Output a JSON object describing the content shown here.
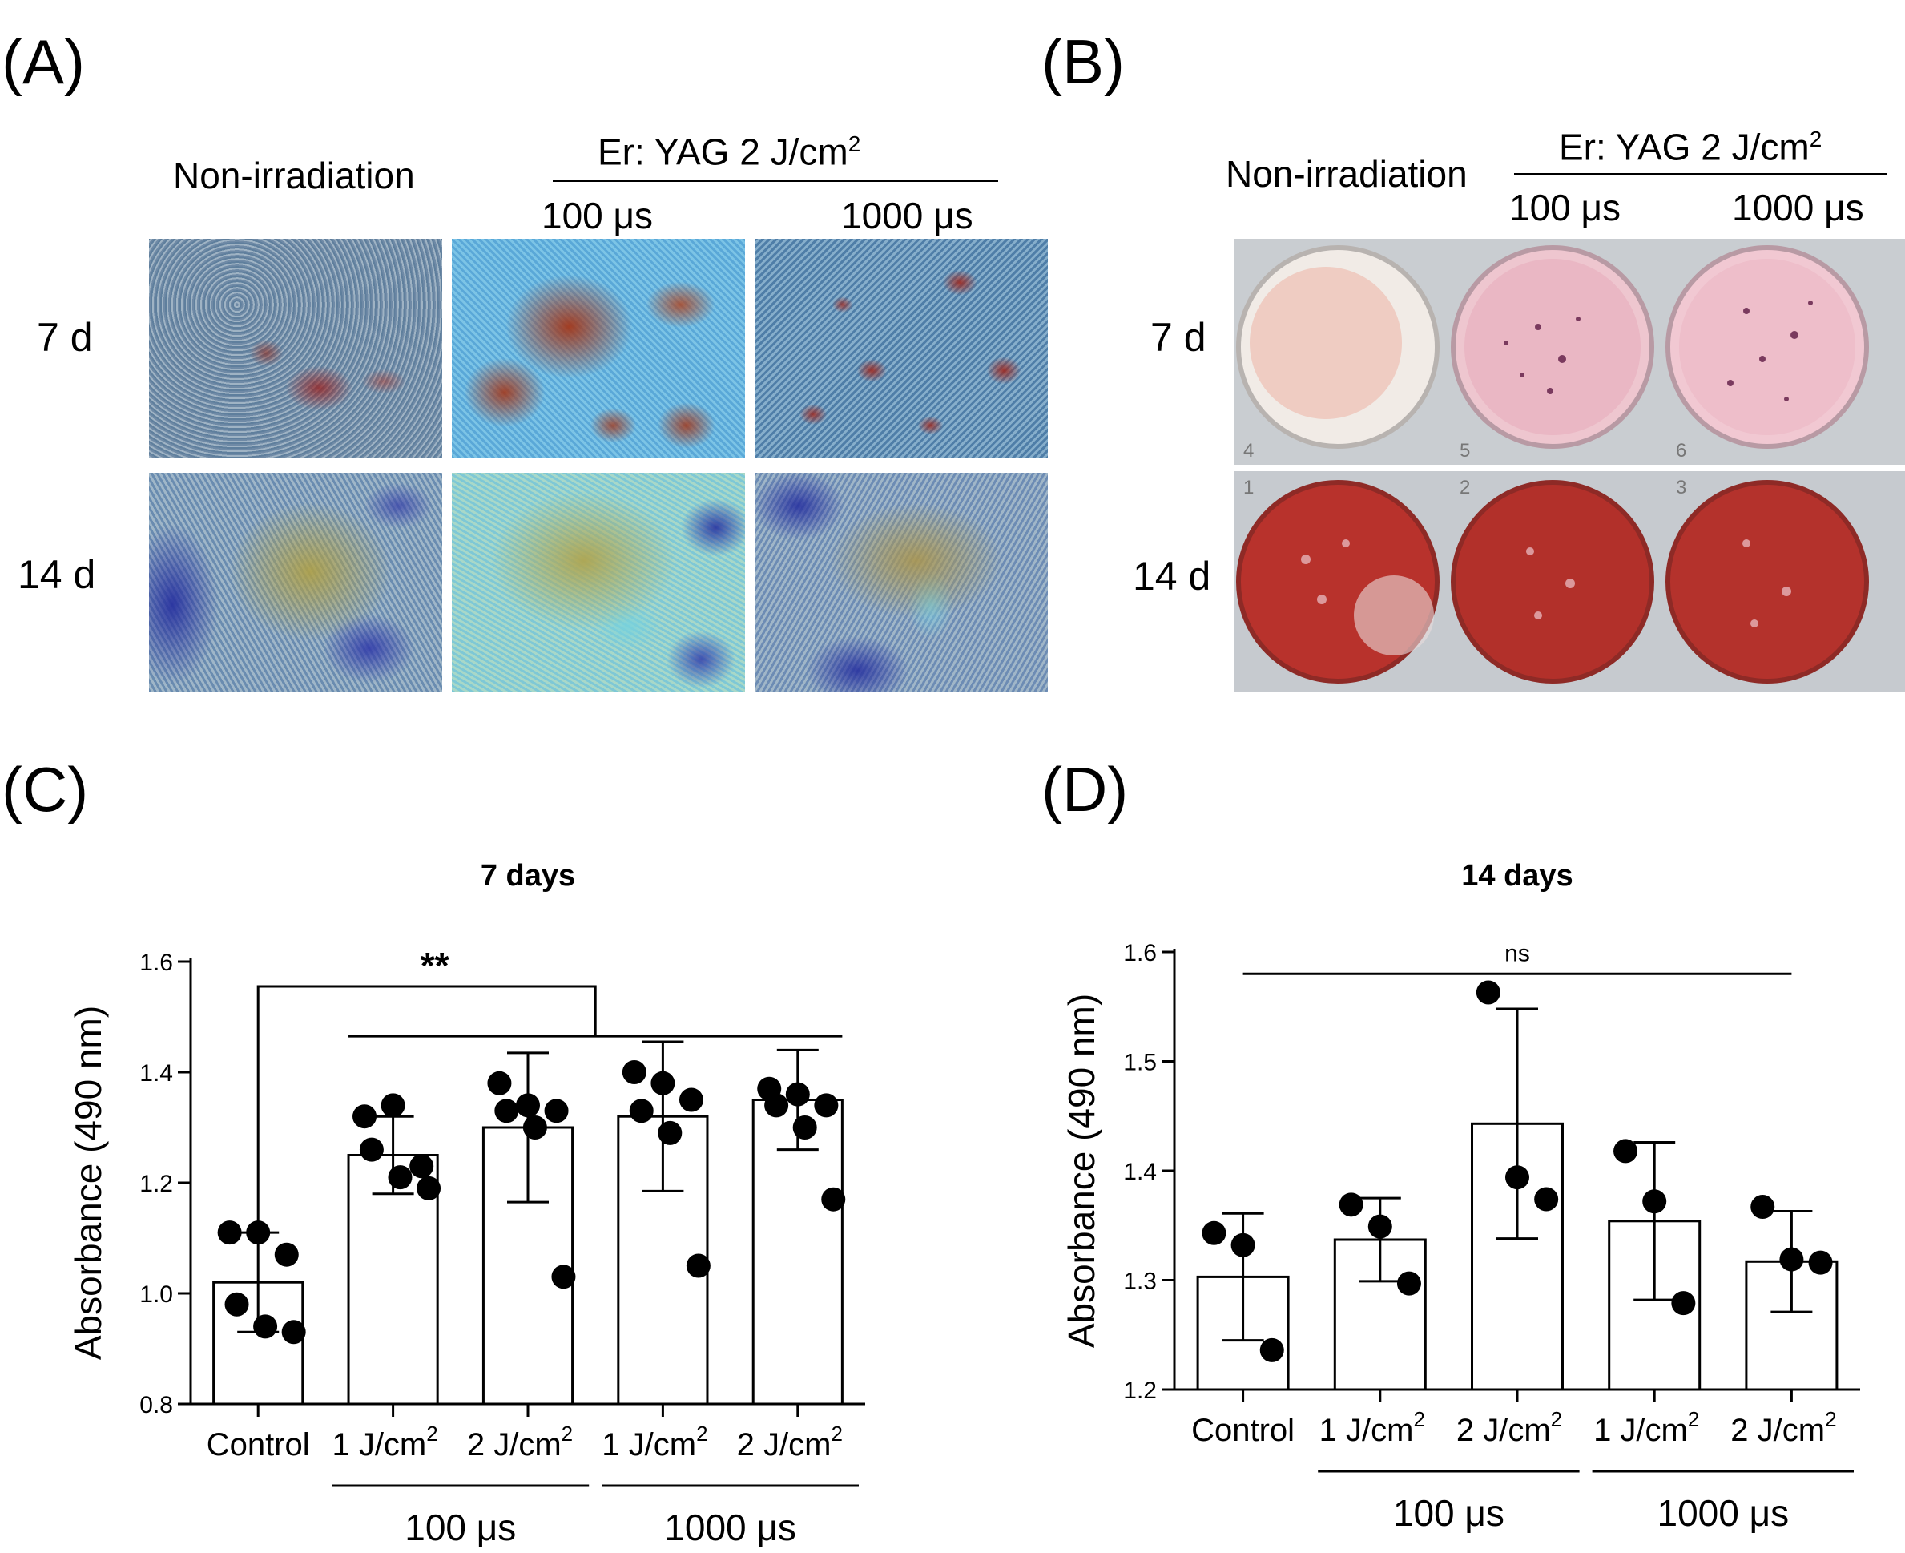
{
  "panels": {
    "A": {
      "label": "(A)",
      "col_header": "Non-irradiation",
      "group_header_prefix": "Er: YAG 2 J/cm",
      "group_header_sup": "2",
      "sub_cols": [
        "100 μs",
        "1000 μs"
      ],
      "rows": [
        "7 d",
        "14 d"
      ]
    },
    "B": {
      "label": "(B)",
      "col_header": "Non-irradiation",
      "group_header_prefix": "Er: YAG 2 J/cm",
      "group_header_sup": "2",
      "sub_cols": [
        "100 μs",
        "1000 μs"
      ],
      "rows": [
        "7 d",
        "14 d"
      ],
      "well_numbers": [
        "4",
        "5",
        "6",
        "1",
        "2",
        "3"
      ]
    },
    "C": {
      "label": "(C)"
    },
    "D": {
      "label": "(D)"
    }
  },
  "chart_data": [
    {
      "type": "bar",
      "title": "7 days",
      "ylabel": "Absorbance (490 nm)",
      "ylim": [
        0.8,
        1.6
      ],
      "yticks": [
        "0.8",
        "1.0",
        "1.2",
        "1.4",
        "1.6"
      ],
      "categories": [
        "Control",
        "1 J/cm2",
        "2 J/cm2",
        "1 J/cm2",
        "2 J/cm2"
      ],
      "tick_labels": [
        {
          "text": "Control",
          "sup": ""
        },
        {
          "text": "1 J/cm",
          "sup": "2"
        },
        {
          "text": "2 J/cm",
          "sup": "2"
        },
        {
          "text": "1 J/cm",
          "sup": "2"
        },
        {
          "text": "2 J/cm",
          "sup": "2"
        }
      ],
      "groups": [
        {
          "label": "100 μs",
          "from": 1,
          "to": 2
        },
        {
          "label": "1000 μs",
          "from": 3,
          "to": 4
        }
      ],
      "values": [
        1.02,
        1.25,
        1.3,
        1.32,
        1.35
      ],
      "errors": [
        0.09,
        0.07,
        0.135,
        0.135,
        0.09
      ],
      "points": [
        [
          1.11,
          1.11,
          1.07,
          0.98,
          0.94,
          0.93
        ],
        [
          1.32,
          1.34,
          1.23,
          1.26,
          1.21,
          1.19
        ],
        [
          1.38,
          1.34,
          1.33,
          1.33,
          1.3,
          1.03
        ],
        [
          1.4,
          1.38,
          1.35,
          1.33,
          1.29,
          1.05
        ],
        [
          1.37,
          1.36,
          1.34,
          1.34,
          1.3,
          1.17
        ]
      ],
      "significance": "**"
    },
    {
      "type": "bar",
      "title": "14 days",
      "ylabel": "Absorbance (490 nm)",
      "ylim": [
        1.2,
        1.6
      ],
      "yticks": [
        "1.2",
        "1.3",
        "1.4",
        "1.5",
        "1.6"
      ],
      "categories": [
        "Control",
        "1 J/cm2",
        "2 J/cm2",
        "1 J/cm2",
        "2 J/cm2"
      ],
      "tick_labels": [
        {
          "text": "Control",
          "sup": ""
        },
        {
          "text": "1 J/cm",
          "sup": "2"
        },
        {
          "text": "2 J/cm",
          "sup": "2"
        },
        {
          "text": "1 J/cm",
          "sup": "2"
        },
        {
          "text": "2 J/cm",
          "sup": "2"
        }
      ],
      "groups": [
        {
          "label": "100 μs",
          "from": 1,
          "to": 2
        },
        {
          "label": "1000 μs",
          "from": 3,
          "to": 4
        }
      ],
      "values": [
        1.303,
        1.337,
        1.443,
        1.354,
        1.317
      ],
      "errors": [
        0.058,
        0.038,
        0.105,
        0.072,
        0.046
      ],
      "points": [
        [
          1.343,
          1.332,
          1.236
        ],
        [
          1.369,
          1.349,
          1.297
        ],
        [
          1.563,
          1.394,
          1.374
        ],
        [
          1.418,
          1.372,
          1.279
        ],
        [
          1.367,
          1.319,
          1.316
        ]
      ],
      "significance": "ns"
    }
  ]
}
